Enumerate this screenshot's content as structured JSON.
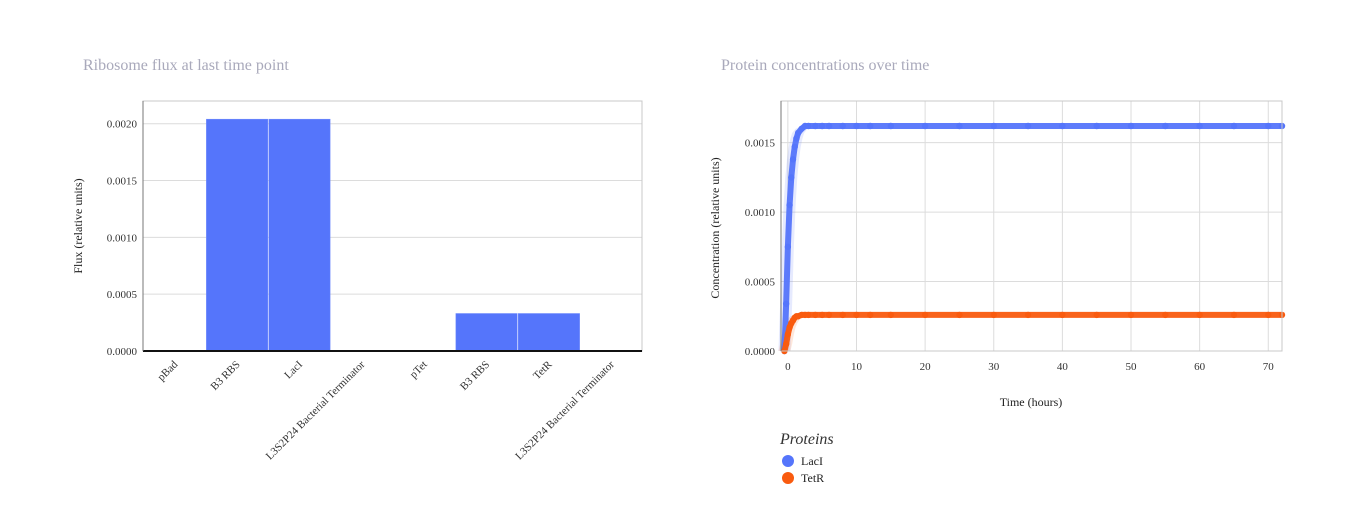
{
  "chart_data": [
    {
      "type": "bar",
      "title": "Ribosome flux at last time point",
      "xlabel": "",
      "ylabel": "Flux (relative units)",
      "ylim": [
        0,
        0.0022
      ],
      "ytick_labels": [
        "0.0000",
        "0.0005",
        "0.0010",
        "0.0015",
        "0.0020"
      ],
      "ytick_values": [
        0,
        0.0005,
        0.001,
        0.0015,
        0.002
      ],
      "categories": [
        "pBad",
        "B3 RBS",
        "LacI",
        "L3S2P24 Bacterial Terminator",
        "pTet",
        "B3 RBS",
        "TetR",
        "L3S2P24 Bacterial Terminator"
      ],
      "values": [
        0,
        0.00204,
        0.00204,
        0,
        0,
        0.00033,
        0.00033,
        0
      ],
      "bar_color": "#5575fb",
      "grid": true
    },
    {
      "type": "scatter",
      "title": "Protein concentrations over time",
      "xlabel": "Time (hours)",
      "ylabel": "Concentration (relative units)",
      "xlim": [
        -1,
        72
      ],
      "ylim": [
        0,
        0.0018
      ],
      "xtick_labels": [
        "0",
        "10",
        "20",
        "30",
        "40",
        "50",
        "60",
        "70"
      ],
      "xtick_values": [
        0,
        10,
        20,
        30,
        40,
        50,
        60,
        70
      ],
      "ytick_labels": [
        "0.0000",
        "0.0005",
        "0.0010",
        "0.0015"
      ],
      "ytick_values": [
        0,
        0.0005,
        0.001,
        0.0015
      ],
      "legend_title": "Proteins",
      "legend_position": "bottom-left",
      "grid": true,
      "series": [
        {
          "name": "LacI",
          "color": "#5575fb",
          "x": [
            -0.5,
            -0.25,
            0,
            0.25,
            0.5,
            0.75,
            1,
            1.25,
            1.5,
            2,
            2.5,
            3,
            4,
            5,
            6,
            8,
            10,
            12,
            15,
            20,
            25,
            30,
            35,
            40,
            45,
            50,
            55,
            60,
            65,
            70,
            72
          ],
          "y": [
            0,
            0.00034,
            0.00075,
            0.00105,
            0.00125,
            0.00138,
            0.00147,
            0.00153,
            0.00157,
            0.0016,
            0.00162,
            0.00162,
            0.00162,
            0.00162,
            0.00162,
            0.00162,
            0.00162,
            0.00162,
            0.00162,
            0.00162,
            0.00162,
            0.00162,
            0.00162,
            0.00162,
            0.00162,
            0.00162,
            0.00162,
            0.00162,
            0.00162,
            0.00162,
            0.00162
          ]
        },
        {
          "name": "TetR",
          "color": "#f95b0f",
          "x": [
            -0.5,
            -0.25,
            0,
            0.25,
            0.5,
            0.75,
            1,
            1.25,
            1.5,
            2,
            2.5,
            3,
            4,
            5,
            6,
            8,
            10,
            12,
            15,
            20,
            25,
            30,
            35,
            40,
            45,
            50,
            55,
            60,
            65,
            70,
            72
          ],
          "y": [
            0,
            5e-05,
            0.00012,
            0.00017,
            0.0002,
            0.00022,
            0.00024,
            0.00025,
            0.00025,
            0.00026,
            0.00026,
            0.00026,
            0.00026,
            0.00026,
            0.00026,
            0.00026,
            0.00026,
            0.00026,
            0.00026,
            0.00026,
            0.00026,
            0.00026,
            0.00026,
            0.00026,
            0.00026,
            0.00026,
            0.00026,
            0.00026,
            0.00026,
            0.00026,
            0.00026
          ]
        }
      ]
    }
  ]
}
